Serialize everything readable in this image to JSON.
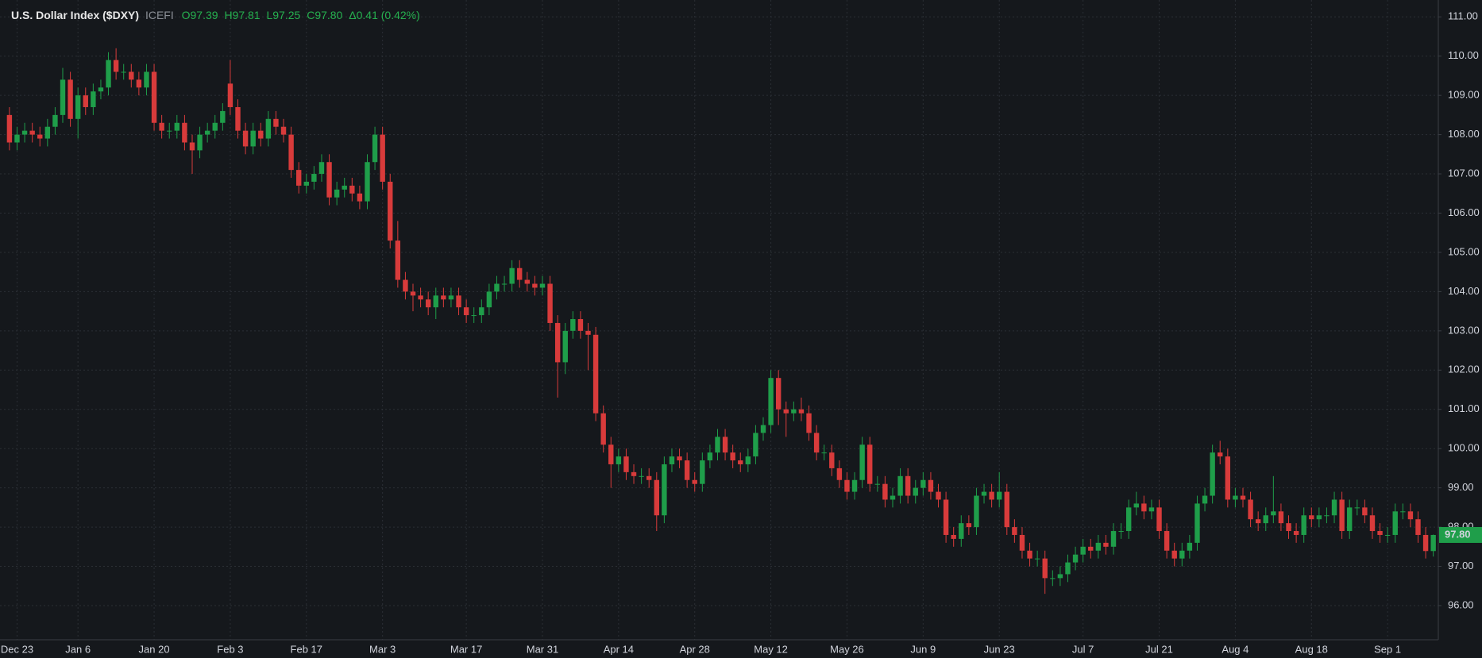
{
  "chart_data": {
    "type": "candlestick",
    "title": "U.S. Dollar Index ($DXY)",
    "source": "ICEFI",
    "quote": [
      "O97.39",
      "H97.81",
      "L97.25",
      "C97.80",
      "Δ0.41 (0.42%)"
    ],
    "up_color": "#1f9e4a",
    "down_color": "#d83b3b",
    "grid": true,
    "ylim": [
      95.13,
      111.43
    ],
    "yticks": [
      {
        "value": 96,
        "label": "96.00"
      },
      {
        "value": 97,
        "label": "97.00"
      },
      {
        "value": 98,
        "label": "98.00"
      },
      {
        "value": 99,
        "label": "99.00"
      },
      {
        "value": 100,
        "label": "100.00"
      },
      {
        "value": 101,
        "label": "101.00"
      },
      {
        "value": 102,
        "label": "102.00"
      },
      {
        "value": 103,
        "label": "103.00"
      },
      {
        "value": 104,
        "label": "104.00"
      },
      {
        "value": 105,
        "label": "105.00"
      },
      {
        "value": 106,
        "label": "106.00"
      },
      {
        "value": 107,
        "label": "107.00"
      },
      {
        "value": 108,
        "label": "108.00"
      },
      {
        "value": 109,
        "label": "109.00"
      },
      {
        "value": 110,
        "label": "110.00"
      },
      {
        "value": 111,
        "label": "111.00"
      }
    ],
    "last_price": {
      "value": 97.8,
      "label": "97.80"
    },
    "categories": [
      null,
      "Dec 23",
      null,
      null,
      null,
      null,
      null,
      null,
      null,
      "Jan 6",
      null,
      null,
      null,
      null,
      null,
      null,
      null,
      null,
      null,
      "Jan 20",
      null,
      null,
      null,
      null,
      null,
      null,
      null,
      null,
      null,
      "Feb 3",
      null,
      null,
      null,
      null,
      null,
      null,
      null,
      null,
      null,
      "Feb 17",
      null,
      null,
      null,
      null,
      null,
      null,
      null,
      null,
      null,
      "Mar 3",
      null,
      null,
      null,
      null,
      null,
      null,
      null,
      null,
      null,
      null,
      "Mar 17",
      null,
      null,
      null,
      null,
      null,
      null,
      null,
      null,
      null,
      "Mar 31",
      null,
      null,
      null,
      null,
      null,
      null,
      null,
      null,
      null,
      "Apr 14",
      null,
      null,
      null,
      null,
      null,
      null,
      null,
      null,
      null,
      "Apr 28",
      null,
      null,
      null,
      null,
      null,
      null,
      null,
      null,
      null,
      "May 12",
      null,
      null,
      null,
      null,
      null,
      null,
      null,
      null,
      null,
      "May 26",
      null,
      null,
      null,
      null,
      null,
      null,
      null,
      null,
      null,
      "Jun 9",
      null,
      null,
      null,
      null,
      null,
      null,
      null,
      null,
      null,
      "Jun 23",
      null,
      null,
      null,
      null,
      null,
      null,
      null,
      null,
      null,
      null,
      "Jul 7",
      null,
      null,
      null,
      null,
      null,
      null,
      null,
      null,
      null,
      "Jul 21",
      null,
      null,
      null,
      null,
      null,
      null,
      null,
      null,
      null,
      "Aug 4",
      null,
      null,
      null,
      null,
      null,
      null,
      null,
      null,
      null,
      "Aug 18",
      null,
      null,
      null,
      null,
      null,
      null,
      null,
      null,
      null,
      "Sep 1",
      null,
      null,
      null,
      null,
      null,
      null
    ],
    "open": [
      108.5,
      107.8,
      108.0,
      108.1,
      108.0,
      107.9,
      108.2,
      108.5,
      109.4,
      108.4,
      109.0,
      108.7,
      109.1,
      109.2,
      109.9,
      109.6,
      109.6,
      109.4,
      109.2,
      109.6,
      108.3,
      108.1,
      108.1,
      108.3,
      107.8,
      107.6,
      108.0,
      108.1,
      108.3,
      109.3,
      108.7,
      108.1,
      107.7,
      108.1,
      107.9,
      108.4,
      108.2,
      108.0,
      107.1,
      106.7,
      106.8,
      107.0,
      107.3,
      106.4,
      106.6,
      106.7,
      106.5,
      106.3,
      107.3,
      108.0,
      106.8,
      105.3,
      104.3,
      104.0,
      103.9,
      103.8,
      103.6,
      103.9,
      103.8,
      103.9,
      103.6,
      103.4,
      103.4,
      103.6,
      104.0,
      104.2,
      104.2,
      104.6,
      104.3,
      104.2,
      104.1,
      104.2,
      103.2,
      102.2,
      103.0,
      103.3,
      103.0,
      102.9,
      100.9,
      100.1,
      99.6,
      99.8,
      99.4,
      99.3,
      99.3,
      99.2,
      98.3,
      99.6,
      99.8,
      99.7,
      99.2,
      99.1,
      99.7,
      99.9,
      100.3,
      99.9,
      99.7,
      99.6,
      99.8,
      100.4,
      100.6,
      101.8,
      101.0,
      100.9,
      101.0,
      100.9,
      100.4,
      99.9,
      99.9,
      99.5,
      99.2,
      98.9,
      99.2,
      100.1,
      99.1,
      99.1,
      98.7,
      98.8,
      99.3,
      98.8,
      99.0,
      99.2,
      98.9,
      98.7,
      97.8,
      97.7,
      98.1,
      98.0,
      98.8,
      98.9,
      98.7,
      98.9,
      98.0,
      97.8,
      97.4,
      97.2,
      97.2,
      96.7,
      96.7,
      96.8,
      97.1,
      97.3,
      97.5,
      97.4,
      97.6,
      97.5,
      97.9,
      97.9,
      98.5,
      98.6,
      98.4,
      98.5,
      97.9,
      97.4,
      97.2,
      97.4,
      97.6,
      98.6,
      98.8,
      99.9,
      99.8,
      98.7,
      98.8,
      98.7,
      98.2,
      98.1,
      98.3,
      98.4,
      98.1,
      97.9,
      97.8,
      98.3,
      98.2,
      98.3,
      98.3,
      98.7,
      97.9,
      98.5,
      98.5,
      98.3,
      97.9,
      97.8,
      97.8,
      98.4,
      98.4,
      98.2,
      97.8,
      97.39
    ],
    "high": [
      108.7,
      108.2,
      108.3,
      108.3,
      108.2,
      108.4,
      108.7,
      109.7,
      109.6,
      109.2,
      109.2,
      109.3,
      109.4,
      110.1,
      110.2,
      109.8,
      109.8,
      109.6,
      109.8,
      109.8,
      108.5,
      108.3,
      108.5,
      108.5,
      108.0,
      108.2,
      108.3,
      108.5,
      108.8,
      109.9,
      108.9,
      108.3,
      108.3,
      108.3,
      108.6,
      108.6,
      108.4,
      108.2,
      107.3,
      107.0,
      107.2,
      107.5,
      107.5,
      106.8,
      106.9,
      106.9,
      106.7,
      107.5,
      108.2,
      108.2,
      107.0,
      105.8,
      104.5,
      104.2,
      104.1,
      104.0,
      104.1,
      104.1,
      104.1,
      104.1,
      103.8,
      103.6,
      103.8,
      104.2,
      104.4,
      104.4,
      104.8,
      104.8,
      104.5,
      104.4,
      104.4,
      104.4,
      103.4,
      103.2,
      103.5,
      103.5,
      103.2,
      103.1,
      101.1,
      100.3,
      100.0,
      100.0,
      99.6,
      99.5,
      99.5,
      99.4,
      99.8,
      100.0,
      100.0,
      99.9,
      99.4,
      99.9,
      100.1,
      100.5,
      100.5,
      100.1,
      99.9,
      100.0,
      100.6,
      100.8,
      102.0,
      102.0,
      101.2,
      101.2,
      101.3,
      101.1,
      100.6,
      100.1,
      100.1,
      99.7,
      99.4,
      99.4,
      100.3,
      100.3,
      99.3,
      99.3,
      99.0,
      99.5,
      99.5,
      99.2,
      99.4,
      99.4,
      99.1,
      98.9,
      98.0,
      98.3,
      98.3,
      99.0,
      99.1,
      99.1,
      99.4,
      99.1,
      98.2,
      98.0,
      97.6,
      97.4,
      97.4,
      96.9,
      97.0,
      97.3,
      97.5,
      97.7,
      97.7,
      97.8,
      97.8,
      98.1,
      98.1,
      98.7,
      98.9,
      98.8,
      98.7,
      98.7,
      98.1,
      97.6,
      97.6,
      97.8,
      98.8,
      99.0,
      100.1,
      100.2,
      100.0,
      99.0,
      99.0,
      98.9,
      98.4,
      98.5,
      99.3,
      98.6,
      98.3,
      98.1,
      98.5,
      98.5,
      98.5,
      98.5,
      98.9,
      98.9,
      98.7,
      98.7,
      98.7,
      98.5,
      98.1,
      98.0,
      98.6,
      98.6,
      98.6,
      98.4,
      98.0,
      97.81
    ],
    "low": [
      107.6,
      107.6,
      107.8,
      107.8,
      107.7,
      107.7,
      108.0,
      108.3,
      108.2,
      107.9,
      108.5,
      108.5,
      108.9,
      109.0,
      109.4,
      109.4,
      109.2,
      109.0,
      109.0,
      108.1,
      107.9,
      107.9,
      107.9,
      107.6,
      107.0,
      107.4,
      107.8,
      107.9,
      108.1,
      108.5,
      107.9,
      107.5,
      107.5,
      107.7,
      107.7,
      108.0,
      107.8,
      106.9,
      106.5,
      106.5,
      106.6,
      106.8,
      106.2,
      106.2,
      106.4,
      106.3,
      106.1,
      106.1,
      107.1,
      106.6,
      105.1,
      104.1,
      103.8,
      103.5,
      103.6,
      103.4,
      103.3,
      103.6,
      103.6,
      103.4,
      103.2,
      103.2,
      103.2,
      103.4,
      103.8,
      104.0,
      104.0,
      104.1,
      104.0,
      103.9,
      103.9,
      103.0,
      101.3,
      101.9,
      102.8,
      102.8,
      102.0,
      100.7,
      99.9,
      99.0,
      99.4,
      99.2,
      99.1,
      99.1,
      99.0,
      97.9,
      98.1,
      99.4,
      99.5,
      99.0,
      98.9,
      98.9,
      99.5,
      99.7,
      99.7,
      99.5,
      99.4,
      99.4,
      99.6,
      100.2,
      100.4,
      100.6,
      100.3,
      100.7,
      100.7,
      100.2,
      99.7,
      99.7,
      99.3,
      99.0,
      98.7,
      98.7,
      99.0,
      98.9,
      98.9,
      98.5,
      98.5,
      98.6,
      98.6,
      98.6,
      98.8,
      98.7,
      98.5,
      97.6,
      97.5,
      97.5,
      97.8,
      97.8,
      98.6,
      98.5,
      98.5,
      97.8,
      97.6,
      97.2,
      97.0,
      97.0,
      96.3,
      96.5,
      96.5,
      96.6,
      96.9,
      97.1,
      97.2,
      97.2,
      97.3,
      97.3,
      97.7,
      97.7,
      98.3,
      98.2,
      98.2,
      97.7,
      97.2,
      97.0,
      97.0,
      97.2,
      97.4,
      98.4,
      98.6,
      99.6,
      98.5,
      98.5,
      98.5,
      98.0,
      97.9,
      97.9,
      98.1,
      97.9,
      97.7,
      97.6,
      97.6,
      98.0,
      98.0,
      98.1,
      98.1,
      97.7,
      97.7,
      98.3,
      98.1,
      97.7,
      97.6,
      97.6,
      97.6,
      98.2,
      98.0,
      97.6,
      97.2,
      97.25
    ],
    "close": [
      107.8,
      108.0,
      108.1,
      108.0,
      107.9,
      108.2,
      108.5,
      109.4,
      108.4,
      109.0,
      108.7,
      109.1,
      109.2,
      109.9,
      109.6,
      109.6,
      109.4,
      109.2,
      109.6,
      108.3,
      108.1,
      108.1,
      108.3,
      107.8,
      107.6,
      108.0,
      108.1,
      108.3,
      108.6,
      108.7,
      108.1,
      107.7,
      108.1,
      107.9,
      108.4,
      108.2,
      108.0,
      107.1,
      106.7,
      106.8,
      107.0,
      107.3,
      106.4,
      106.6,
      106.7,
      106.5,
      106.3,
      107.3,
      108.0,
      106.8,
      105.3,
      104.3,
      104.0,
      103.9,
      103.8,
      103.6,
      103.9,
      103.8,
      103.9,
      103.6,
      103.4,
      103.4,
      103.6,
      104.0,
      104.2,
      104.2,
      104.6,
      104.3,
      104.2,
      104.1,
      104.2,
      103.2,
      102.2,
      103.0,
      103.3,
      103.0,
      102.9,
      100.9,
      100.1,
      99.6,
      99.8,
      99.4,
      99.3,
      99.3,
      99.2,
      98.3,
      99.6,
      99.8,
      99.7,
      99.2,
      99.1,
      99.7,
      99.9,
      100.3,
      99.9,
      99.7,
      99.6,
      99.8,
      100.4,
      100.6,
      101.8,
      101.0,
      100.9,
      101.0,
      100.9,
      100.4,
      99.9,
      99.9,
      99.5,
      99.2,
      98.9,
      99.2,
      100.1,
      99.1,
      99.1,
      98.7,
      98.8,
      99.3,
      98.8,
      99.0,
      99.2,
      98.9,
      98.7,
      97.8,
      97.7,
      98.1,
      98.0,
      98.8,
      98.9,
      98.7,
      98.9,
      98.0,
      97.8,
      97.4,
      97.2,
      97.2,
      96.7,
      96.7,
      96.8,
      97.1,
      97.3,
      97.5,
      97.4,
      97.6,
      97.5,
      97.9,
      97.9,
      98.5,
      98.6,
      98.4,
      98.5,
      97.9,
      97.4,
      97.2,
      97.4,
      97.6,
      98.6,
      98.8,
      99.9,
      99.8,
      98.7,
      98.8,
      98.7,
      98.2,
      98.1,
      98.3,
      98.4,
      98.1,
      97.9,
      97.8,
      98.3,
      98.2,
      98.3,
      98.3,
      98.7,
      97.9,
      98.5,
      98.5,
      98.3,
      97.9,
      97.8,
      97.8,
      98.4,
      98.4,
      98.2,
      97.8,
      97.39,
      97.8
    ]
  }
}
